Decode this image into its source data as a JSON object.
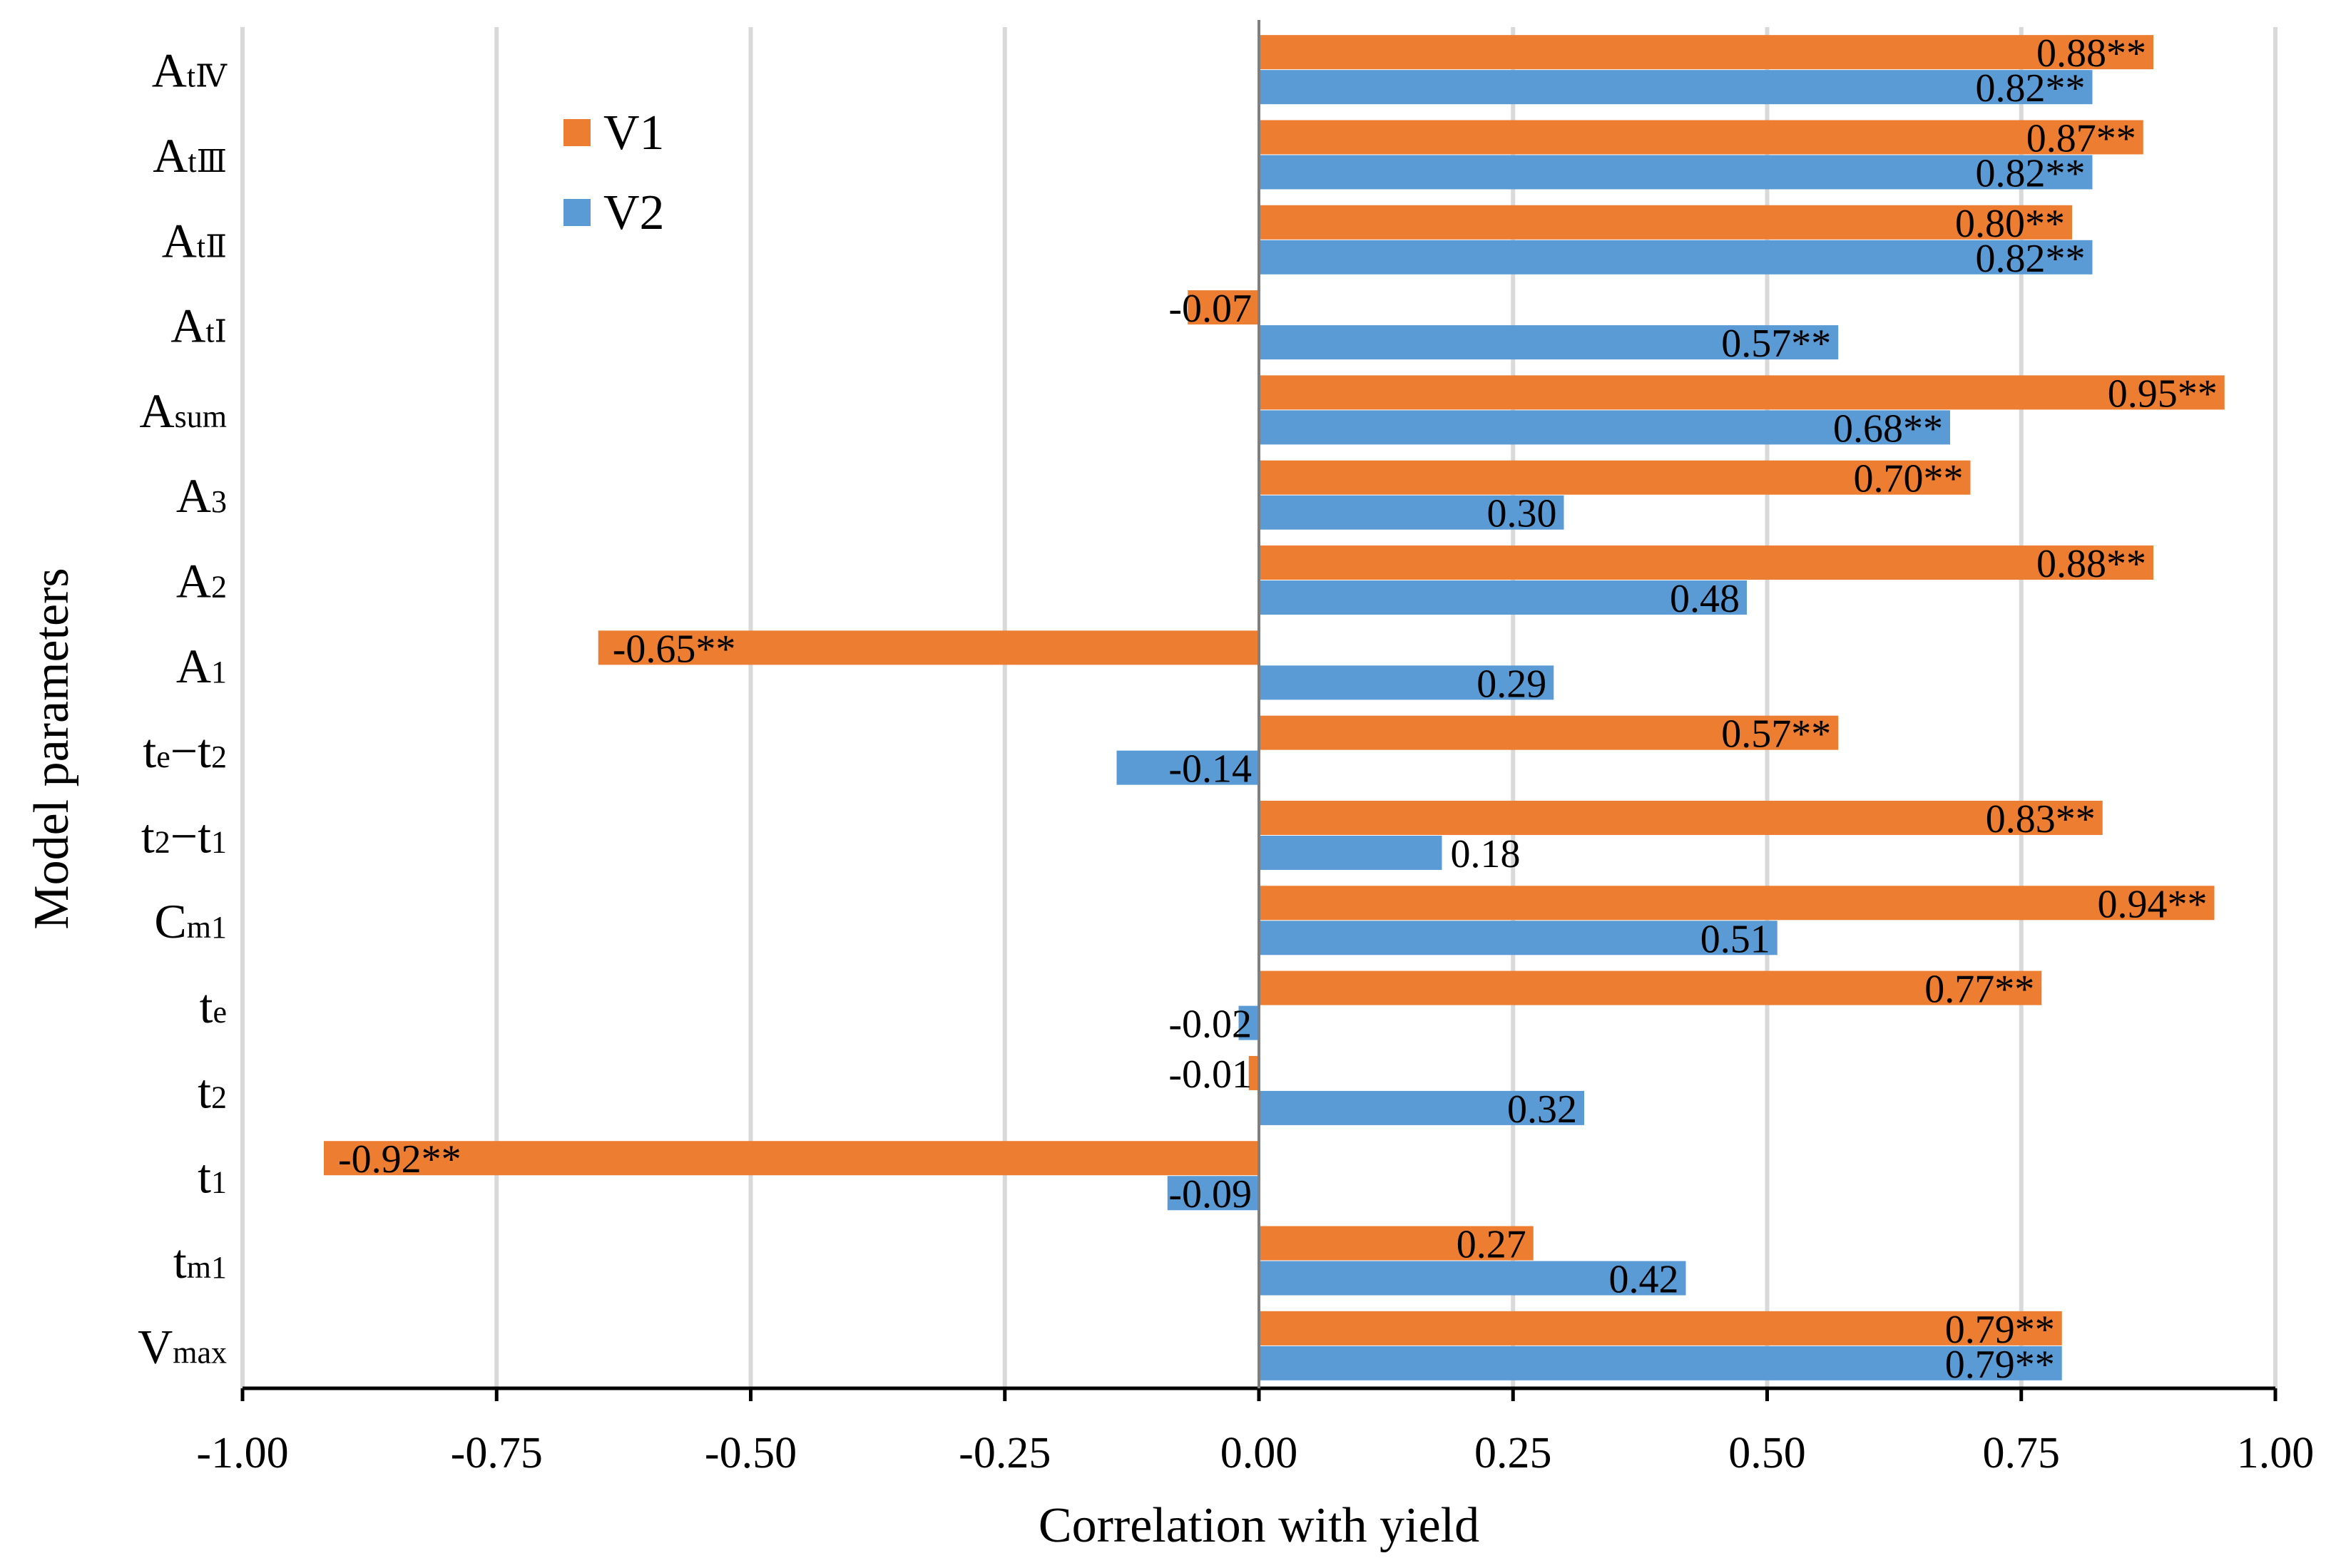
{
  "chart_data": {
    "type": "bar",
    "orientation": "horizontal",
    "xlabel": "Correlation with yield",
    "ylabel": "Model parameters",
    "xlim": [
      -1.0,
      1.0
    ],
    "x_ticks": [
      "-1.00",
      "-0.75",
      "-0.50",
      "-0.25",
      "0.00",
      "0.25",
      "0.50",
      "0.75",
      "1.00"
    ],
    "grid": true,
    "legend_position": "top-center-left",
    "categories": [
      {
        "main": "A",
        "sub": "tⅣ"
      },
      {
        "main": "A",
        "sub": "tⅢ"
      },
      {
        "main": "A",
        "sub": "tⅡ"
      },
      {
        "main": "A",
        "sub": "tⅠ"
      },
      {
        "main": "A",
        "sub": "sum"
      },
      {
        "main": "A",
        "sub": "3"
      },
      {
        "main": "A",
        "sub": "2"
      },
      {
        "main": "A",
        "sub": "1"
      },
      {
        "main": "t",
        "sub": "e",
        "mid": "−t",
        "sub2": "2"
      },
      {
        "main": "t",
        "sub": "2",
        "mid": "−t",
        "sub2": "1"
      },
      {
        "main": "C",
        "sub": "m1"
      },
      {
        "main": "t",
        "sub": "e"
      },
      {
        "main": "t",
        "sub": "2"
      },
      {
        "main": "t",
        "sub": "1"
      },
      {
        "main": "t",
        "sub": "m1"
      },
      {
        "main": "V",
        "sub": "max"
      }
    ],
    "series": [
      {
        "name": "V1",
        "color": "#ED7D31",
        "values": [
          0.88,
          0.87,
          0.8,
          -0.07,
          0.95,
          0.7,
          0.88,
          -0.65,
          0.57,
          0.83,
          0.94,
          0.77,
          -0.01,
          -0.92,
          0.27,
          0.79
        ],
        "labels": [
          "0.88**",
          "0.87**",
          "0.80**",
          "-0.07",
          "0.95**",
          "0.70**",
          "0.88**",
          "-0.65**",
          "0.57**",
          "0.83**",
          "0.94**",
          "0.77**",
          "-0.01",
          "-0.92**",
          "0.27",
          "0.79**"
        ]
      },
      {
        "name": "V2",
        "color": "#5B9BD5",
        "values": [
          0.82,
          0.82,
          0.82,
          0.57,
          0.68,
          0.3,
          0.48,
          0.29,
          -0.14,
          0.18,
          0.51,
          -0.02,
          0.32,
          -0.09,
          0.42,
          0.79
        ],
        "labels": [
          "0.82**",
          "0.82**",
          "0.82**",
          "0.57**",
          "0.68**",
          "0.30",
          "0.48",
          "0.29",
          "-0.14",
          "0.18",
          "0.51",
          "-0.02",
          "0.32",
          "-0.09",
          "0.42",
          "0.79**"
        ]
      }
    ]
  }
}
